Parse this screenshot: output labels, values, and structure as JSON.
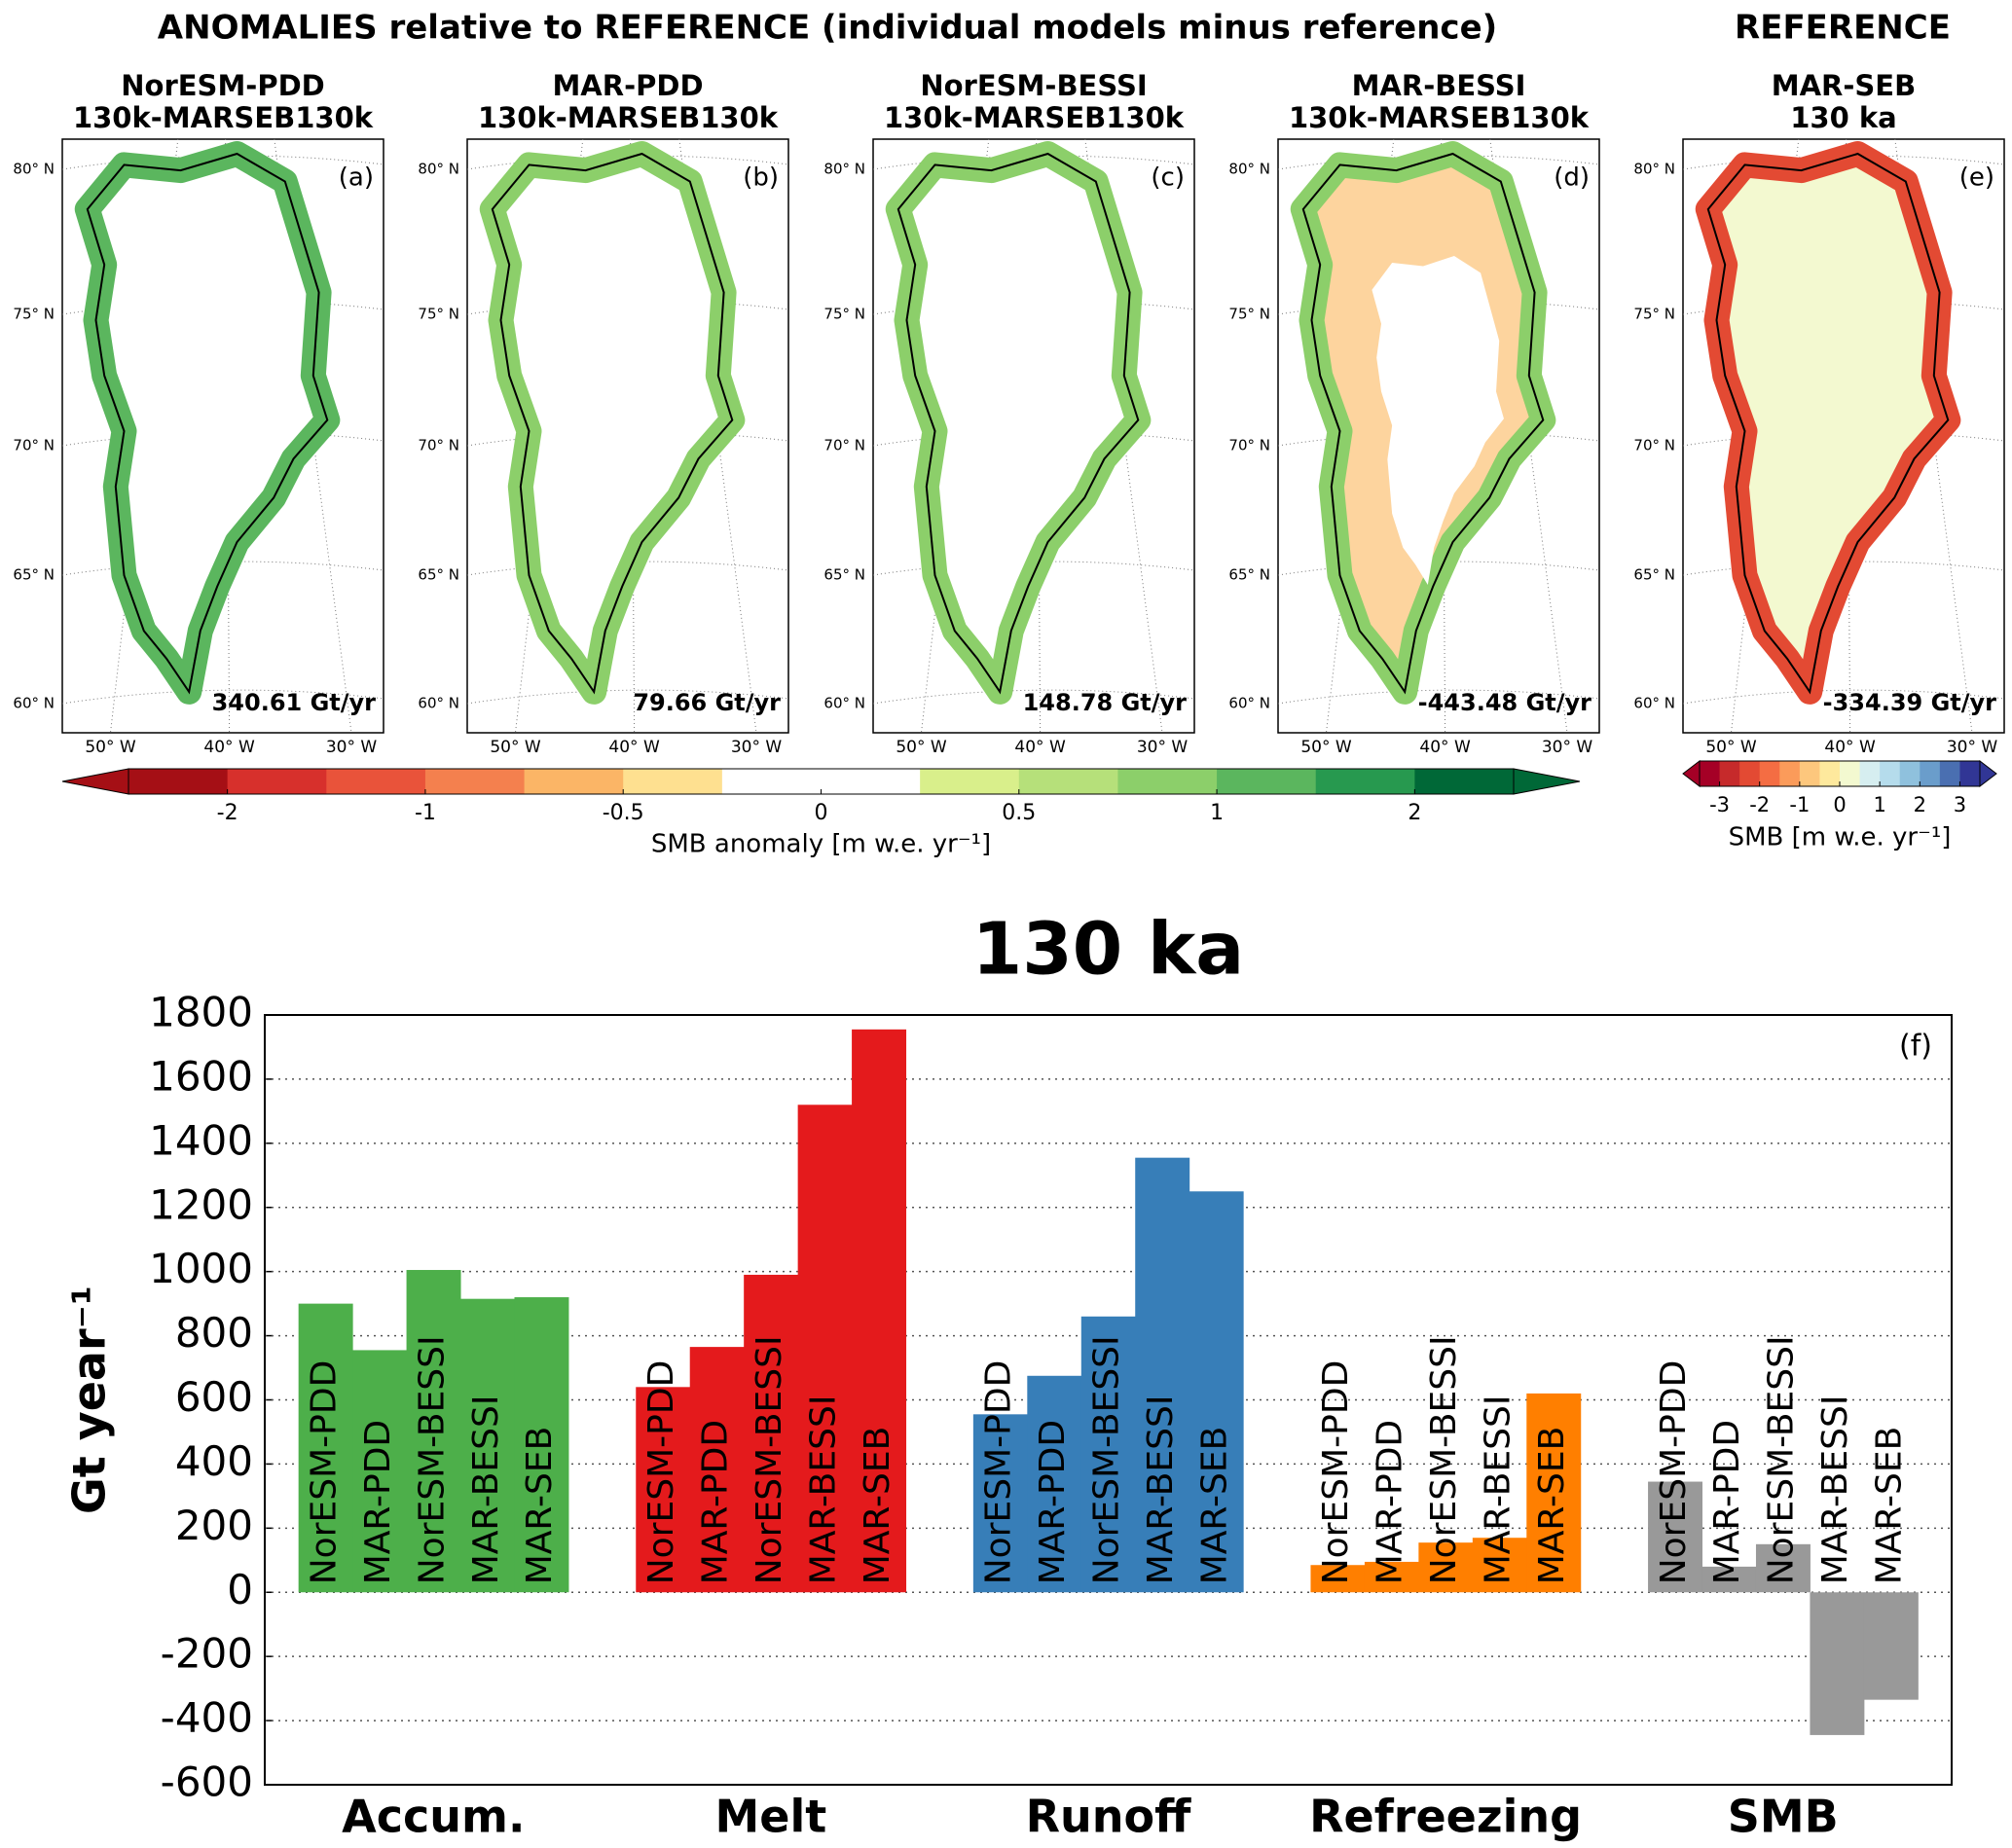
{
  "header": {
    "anomalies_title": "ANOMALIES relative to REFERENCE (individual models minus reference)",
    "reference_title": "REFERENCE"
  },
  "maps": [
    {
      "title": "NorESM-PDD",
      "subtitle": "130k-MARSEB130k",
      "panel": "(a)",
      "total": "340.61 Gt/yr"
    },
    {
      "title": "MAR-PDD",
      "subtitle": "130k-MARSEB130k",
      "panel": "(b)",
      "total": "79.66 Gt/yr"
    },
    {
      "title": "NorESM-BESSI",
      "subtitle": "130k-MARSEB130k",
      "panel": "(c)",
      "total": "148.78 Gt/yr"
    },
    {
      "title": "MAR-BESSI",
      "subtitle": "130k-MARSEB130k",
      "panel": "(d)",
      "total": "-443.48 Gt/yr"
    },
    {
      "title": "MAR-SEB",
      "subtitle": "130 ka",
      "panel": "(e)",
      "total": "-334.39 Gt/yr"
    }
  ],
  "map_axes": {
    "lat_labels": [
      "80° N",
      "75° N",
      "70° N",
      "65° N",
      "60° N"
    ],
    "lon_labels": [
      "50° W",
      "40° W",
      "30° W"
    ]
  },
  "colorbars": [
    {
      "label": "SMB anomaly [m w.e. yr⁻¹]",
      "ticks": [
        -2,
        -1,
        -0.5,
        0,
        0.5,
        1,
        2
      ],
      "colors": [
        "#a50f15",
        "#d7302c",
        "#e9533a",
        "#f4804e",
        "#fbb566",
        "#fee090",
        "#ffffff",
        "#ffffff",
        "#d9ef8b",
        "#b6e07a",
        "#8ccf6a",
        "#5bb65e",
        "#27994f",
        "#006837"
      ]
    },
    {
      "label": "SMB [m w.e. yr⁻¹]",
      "ticks": [
        -3,
        -2,
        -1,
        0,
        1,
        2,
        3
      ],
      "colors": [
        "#a50026",
        "#c62a2b",
        "#e34a33",
        "#f46d43",
        "#fb9b5a",
        "#fdc77d",
        "#fee99d",
        "#f3f9d0",
        "#d6eef0",
        "#b5dcec",
        "#8fc1dd",
        "#6a9dcb",
        "#4a6fb1",
        "#313695"
      ]
    }
  ],
  "chart_data": {
    "type": "bar",
    "title": "130 ka",
    "y_label": "Gt year⁻¹",
    "panel": "(f)",
    "categories": [
      "Accum.",
      "Melt",
      "Runoff",
      "Refreezing",
      "SMB"
    ],
    "category_colors": [
      "#4daf4a",
      "#e41a1c",
      "#377eb8",
      "#ff7f00",
      "#999999"
    ],
    "series": [
      {
        "name": "NorESM-PDD",
        "values": [
          900,
          640,
          555,
          85,
          345
        ]
      },
      {
        "name": "MAR-PDD",
        "values": [
          755,
          765,
          675,
          95,
          80
        ]
      },
      {
        "name": "NorESM-BESSI",
        "values": [
          1005,
          990,
          860,
          155,
          150
        ]
      },
      {
        "name": "MAR-BESSI",
        "values": [
          915,
          1520,
          1355,
          170,
          -445
        ]
      },
      {
        "name": "MAR-SEB",
        "values": [
          920,
          1755,
          1250,
          620,
          -335
        ]
      }
    ],
    "ylim": [
      -600,
      1800
    ],
    "yticks": [
      -600,
      -400,
      -200,
      0,
      200,
      400,
      600,
      800,
      1000,
      1200,
      1400,
      1600,
      1800
    ],
    "grid": true
  }
}
